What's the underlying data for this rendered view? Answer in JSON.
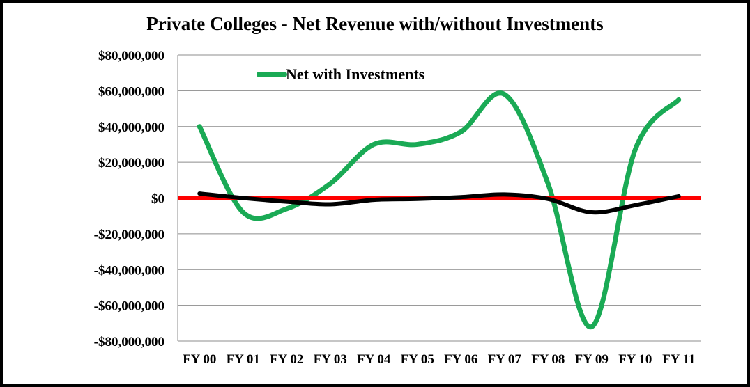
{
  "chart_data": {
    "type": "line",
    "title": "Private Colleges - Net Revenue with/without Investments",
    "xlabel": "",
    "ylabel": "",
    "categories": [
      "FY 00",
      "FY 01",
      "FY 02",
      "FY 03",
      "FY 04",
      "FY 05",
      "FY 06",
      "FY 07",
      "FY 08",
      "FY 09",
      "FY 10",
      "FY 11"
    ],
    "y_ticks": [
      "$80,000,000",
      "$60,000,000",
      "$40,000,000",
      "$20,000,000",
      "$0",
      "-$20,000,000",
      "-$40,000,000",
      "-$60,000,000",
      "-$80,000,000"
    ],
    "ylim": [
      -80000000,
      80000000
    ],
    "grid": true,
    "legend_position": "top-left",
    "series": [
      {
        "name": "Net with Investments",
        "color": "#1aaa55",
        "values": [
          40000000,
          -8000000,
          -6000000,
          8000000,
          30000000,
          30000000,
          37000000,
          58000000,
          8000000,
          -72000000,
          27000000,
          55000000
        ]
      },
      {
        "color": "#000000",
        "values": [
          2500000,
          0,
          -2000000,
          -3500000,
          -1000000,
          -500000,
          500000,
          2000000,
          -500000,
          -8000000,
          -4000000,
          1000000
        ]
      }
    ],
    "zero_line_color": "#ff0000"
  }
}
